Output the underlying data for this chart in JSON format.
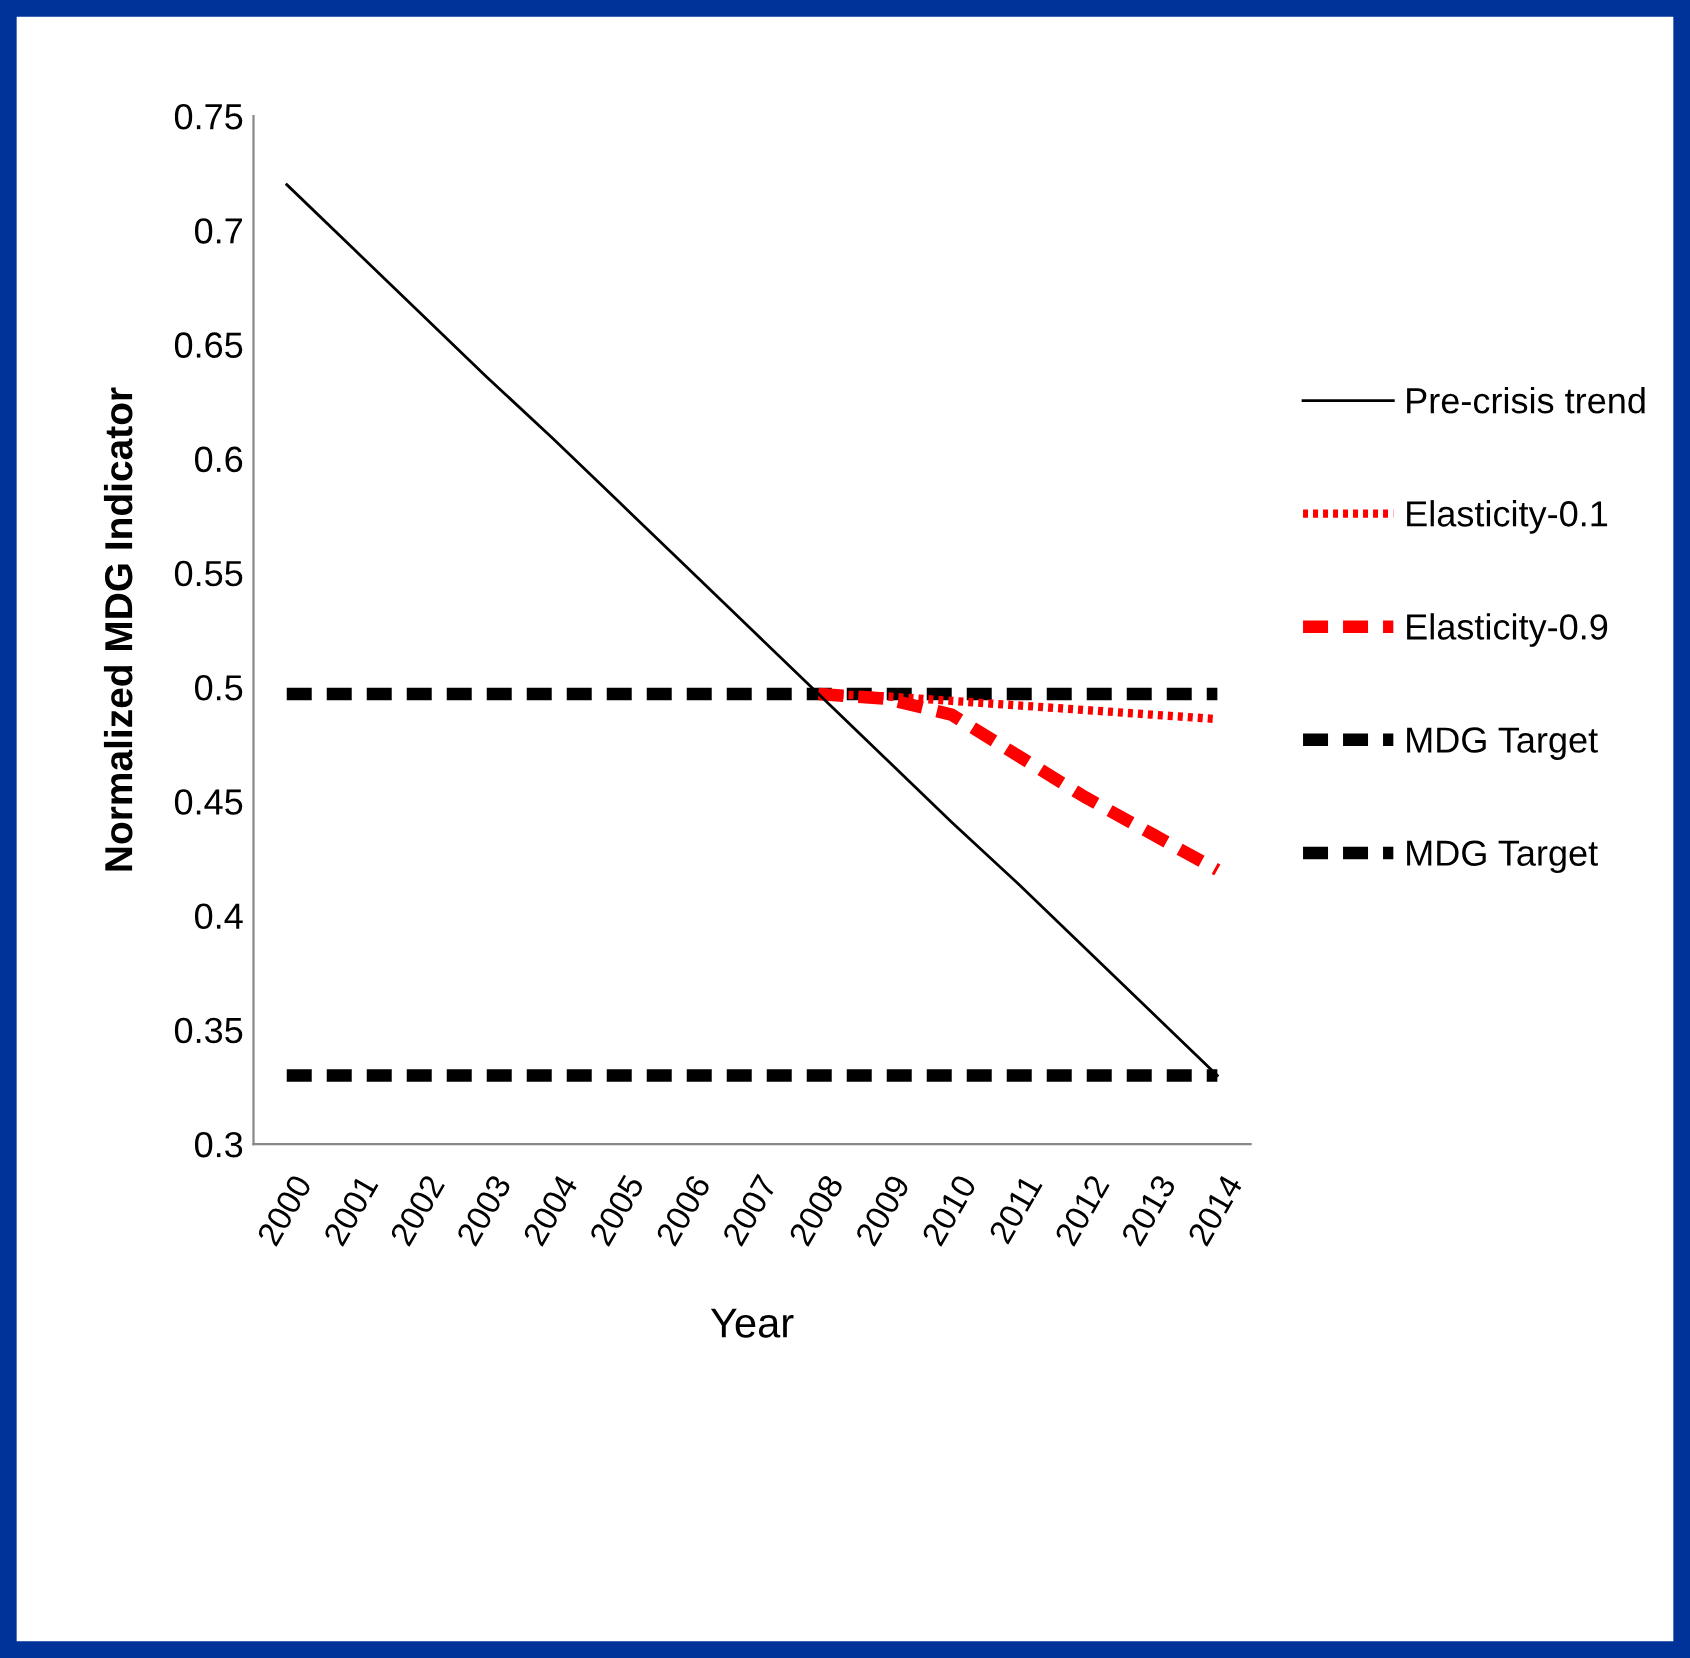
{
  "chart_data": {
    "type": "line",
    "xlabel": "Year",
    "ylabel": "Normalized MDG Indicator",
    "categories": [
      "2000",
      "2001",
      "2002",
      "2003",
      "2004",
      "2005",
      "2006",
      "2007",
      "2008",
      "2009",
      "2010",
      "2011",
      "2012",
      "2013",
      "2014"
    ],
    "series": [
      {
        "name": "Pre-crisis trend",
        "color": "#000000",
        "line_style": "solid",
        "values": [
          0.72,
          0.692,
          0.664,
          0.636,
          0.609,
          0.581,
          0.553,
          0.525,
          0.497,
          0.469,
          0.441,
          0.414,
          0.386,
          0.358,
          0.33
        ]
      },
      {
        "name": "Elasticity-0.1",
        "color": "#ff0000",
        "line_style": "dotted",
        "values": [
          null,
          null,
          null,
          null,
          null,
          null,
          null,
          null,
          0.497,
          0.496,
          0.494,
          0.492,
          0.49,
          0.488,
          0.486
        ]
      },
      {
        "name": "Elasticity-0.9",
        "color": "#ff0000",
        "line_style": "dashed",
        "values": [
          null,
          null,
          null,
          null,
          null,
          null,
          null,
          null,
          0.497,
          0.495,
          0.488,
          0.47,
          0.452,
          0.436,
          0.42
        ]
      },
      {
        "name": "MDG Target",
        "color": "#000000",
        "line_style": "dashed",
        "values": [
          0.497,
          0.497,
          0.497,
          0.497,
          0.497,
          0.497,
          0.497,
          0.497,
          0.497,
          0.497,
          0.497,
          0.497,
          0.497,
          0.497,
          0.497
        ]
      },
      {
        "name": "MDG Target",
        "color": "#000000",
        "line_style": "dashed",
        "values": [
          0.33,
          0.33,
          0.33,
          0.33,
          0.33,
          0.33,
          0.33,
          0.33,
          0.33,
          0.33,
          0.33,
          0.33,
          0.33,
          0.33,
          0.33
        ]
      }
    ],
    "ylim": [
      0.3,
      0.75
    ],
    "yticks": [
      0.3,
      0.35,
      0.4,
      0.45,
      0.5,
      0.55,
      0.6,
      0.65,
      0.7,
      0.75
    ],
    "grid": false,
    "legend": "right",
    "marker": "none"
  }
}
